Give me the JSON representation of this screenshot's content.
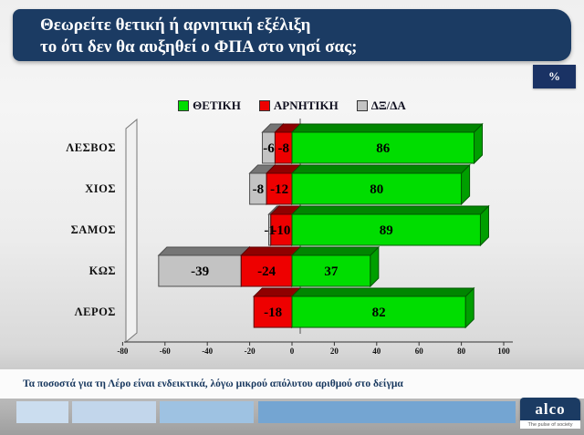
{
  "slide": {
    "title_line1": "Θεωρείτε θετική ή αρνητική εξέλιξη",
    "title_line2": "το ότι δεν θα αυξηθεί ο ΦΠΑ στο νησί σας;",
    "unit_badge": "%",
    "footnote": "Τα ποσοστά για τη Λέρο είναι ενδεικτικά, λόγω μικρού απόλυτου αριθμού στο δείγμα",
    "logo": {
      "name": "alco",
      "tagline": "The pulse of society"
    },
    "deco_bar_colors": [
      "#cbddef",
      "#c2d6eb",
      "#9ec2e2",
      "#74a5d2"
    ],
    "title_bg_color": "#1b3b63"
  },
  "chart_data": {
    "type": "bar",
    "orientation": "horizontal-stacked-3d",
    "title": "",
    "xlabel": "",
    "ylabel": "",
    "categories": [
      "ΛΕΣΒΟΣ",
      "ΧΙΟΣ",
      "ΣΑΜΟΣ",
      "ΚΩΣ",
      "ΛΕΡΟΣ"
    ],
    "series": [
      {
        "name": "ΘΕΤΙΚΗ",
        "color": "#00dd00",
        "values": [
          86,
          80,
          89,
          37,
          82
        ]
      },
      {
        "name": "ΑΡΝΗΤΙΚΗ",
        "color": "#ee0000",
        "values": [
          -8,
          -12,
          -10,
          -24,
          -18
        ]
      },
      {
        "name": "ΔΞ/ΔΑ",
        "color": "#c3c3c3",
        "values": [
          -6,
          -8,
          -1,
          -39,
          0
        ]
      }
    ],
    "xlim": [
      -80,
      100
    ],
    "x_ticks": [
      -80,
      -60,
      -40,
      -20,
      0,
      20,
      40,
      60,
      80,
      100
    ],
    "grid": false,
    "legend_position": "top"
  }
}
